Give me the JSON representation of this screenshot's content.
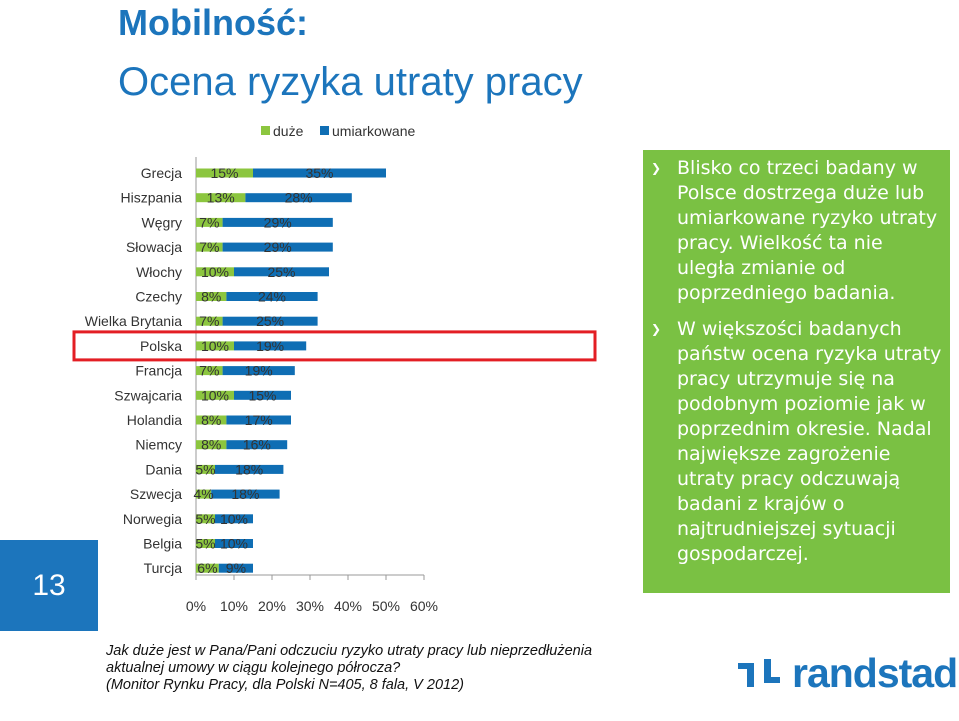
{
  "header": {
    "title": "Mobilność:",
    "subtitle": "Ocena ryzyka utraty pracy"
  },
  "page_number": "13",
  "info_box": {
    "bullets": [
      "Blisko co trzeci badany w Polsce dostrzega duże lub umiarkowane ryzyko utraty pracy. Wielkość ta nie uległa zmianie od poprzedniego badania.",
      "W większości badanych państw ocena ryzyka utraty pracy utrzymuje się na podobnym poziomie jak w poprzednim okresie. Nadal największe zagrożenie utraty pracy odczuwają badani z krajów o najtrudniejszej sytuacji gospodarczej."
    ]
  },
  "footer": {
    "question_line1": "Jak duże jest w Pana/Pani odczuciu ryzyko utraty pracy lub nieprzedłużenia",
    "question_line2": "aktualnej umowy w ciągu kolejnego półrocza?",
    "source": "(Monitor Rynku Pracy, dla Polski N=405, 8 fala, V 2012)",
    "logo_text": "randstad"
  },
  "colors": {
    "green": "#8cc63f",
    "blue": "#0f6eb4",
    "highlight": "#e31e24",
    "page_box": "#1c75bc"
  },
  "chart_data": {
    "type": "bar",
    "orientation": "horizontal",
    "stacked": true,
    "categories": [
      "Grecja",
      "Hiszpania",
      "Węgry",
      "Słowacja",
      "Włochy",
      "Czechy",
      "Wielka Brytania",
      "Polska",
      "Francja",
      "Szwajcaria",
      "Holandia",
      "Niemcy",
      "Dania",
      "Szwecja",
      "Norwegia",
      "Belgia",
      "Turcja"
    ],
    "series": [
      {
        "name": "duże",
        "values": [
          15,
          13,
          7,
          7,
          10,
          8,
          7,
          10,
          7,
          10,
          8,
          8,
          5,
          4,
          5,
          5,
          6
        ]
      },
      {
        "name": "umiarkowane",
        "values": [
          35,
          28,
          29,
          29,
          25,
          24,
          25,
          19,
          19,
          15,
          17,
          16,
          18,
          18,
          10,
          10,
          9
        ]
      }
    ],
    "x_ticks": [
      "0%",
      "10%",
      "20%",
      "30%",
      "40%",
      "50%",
      "60%"
    ],
    "xlim": [
      0,
      60
    ],
    "highlighted_category": "Polska",
    "legend_position": "top"
  }
}
